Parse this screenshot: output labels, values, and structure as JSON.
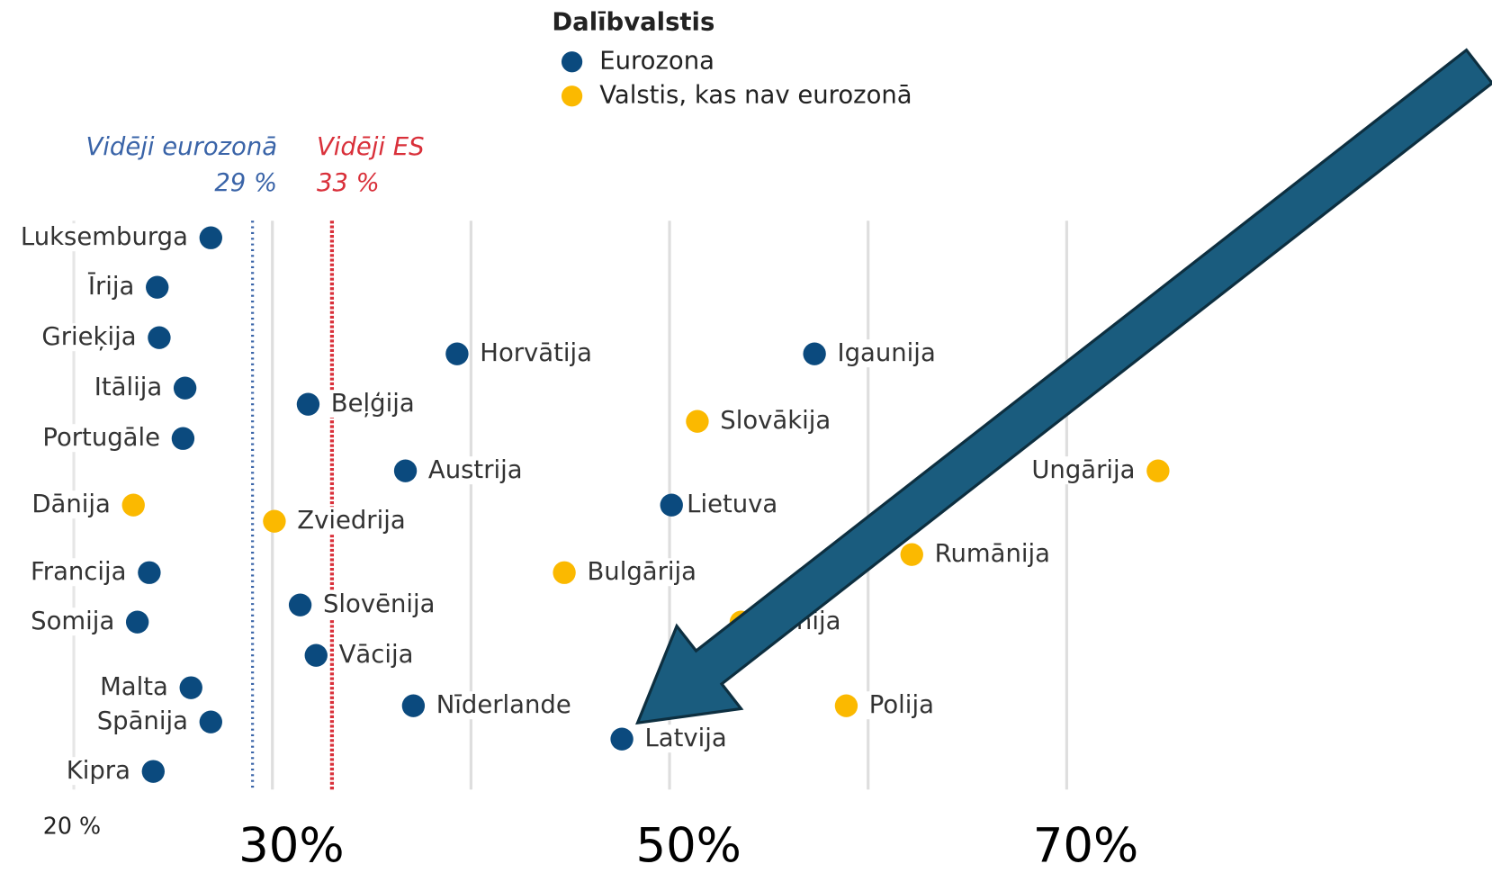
{
  "chart_data": {
    "type": "scatter",
    "legend_title": "Dalībvalstis",
    "series": [
      {
        "name": "Eurozona",
        "color": "#0b4a7e",
        "categories": [
          "Luksemburga",
          "Īrija",
          "Grieķija",
          "Itālija",
          "Portugāle",
          "Francija",
          "Somija",
          "Malta",
          "Spānija",
          "Kipra",
          "Horvātija",
          "Igaunija",
          "Beļģija",
          "Austrija",
          "Lietuva",
          "Slovēnija",
          "Vācija",
          "Nīderlande",
          "Latvija"
        ],
        "values": [
          26.9,
          24.2,
          24.3,
          25.6,
          25.5,
          23.8,
          23.2,
          25.9,
          26.9,
          24.0,
          39.3,
          57.3,
          31.8,
          36.7,
          50.1,
          31.4,
          32.2,
          37.1,
          47.6
        ]
      },
      {
        "name": "Valstis, kas nav eurozonā",
        "color": "#fbb900",
        "categories": [
          "Dānija",
          "Slovākija",
          "Ungārija",
          "Zviedrija",
          "Rumānija",
          "Bulgārija",
          "Čehija",
          "Polija"
        ],
        "values": [
          23.0,
          51.4,
          74.6,
          30.1,
          62.2,
          44.7,
          53.6,
          58.9
        ]
      }
    ],
    "reference_lines": [
      {
        "name": "Vidēji eurozonā",
        "value": 29,
        "value_label": "29 %",
        "color": "#3a64a8"
      },
      {
        "name": "Vidēji ES",
        "value": 33,
        "value_label": "33 %",
        "color": "#d9303a"
      }
    ],
    "xlim": [
      16.3,
      91.4
    ],
    "xgrid": [
      20,
      30,
      40,
      50,
      60,
      70
    ],
    "xticks": [
      {
        "value": 20,
        "label": "20 %"
      },
      {
        "value": 30,
        "label": "30%"
      },
      {
        "value": 50,
        "label": "50%"
      },
      {
        "value": 70,
        "label": "70%"
      }
    ],
    "grid": true
  }
}
